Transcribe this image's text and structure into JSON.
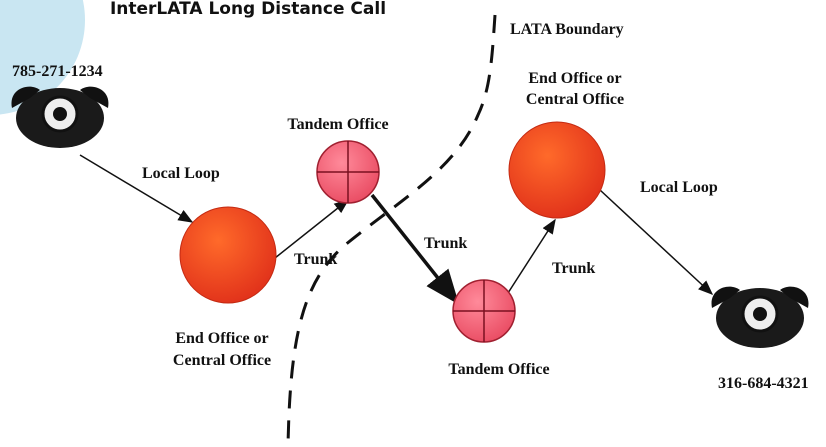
{
  "title": "InterLATA Long Distance Call",
  "boundary_label": "LATA Boundary",
  "phones": [
    {
      "number": "785-271-1234"
    },
    {
      "number": "316-684-4321"
    }
  ],
  "nodes": [
    {
      "label_lines": [
        "End Office or",
        "Central Office"
      ]
    },
    {
      "label": "Tandem Office"
    },
    {
      "label": "Tandem Office"
    },
    {
      "label_lines": [
        "End Office or",
        "Central Office"
      ]
    }
  ],
  "links": [
    {
      "label": "Local Loop"
    },
    {
      "label": "Trunk"
    },
    {
      "label": "Trunk"
    },
    {
      "label": "Trunk"
    },
    {
      "label": "Local Loop"
    }
  ]
}
